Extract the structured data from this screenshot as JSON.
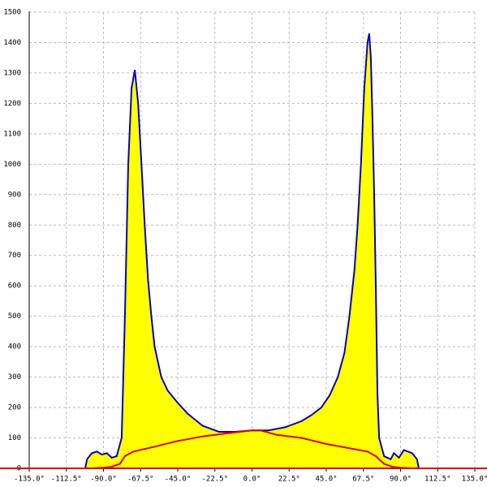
{
  "chart_data": {
    "type": "line",
    "xlim": [
      -135,
      135
    ],
    "ylim": [
      0,
      1500
    ],
    "xticks": [
      {
        "value": -135,
        "label": "-135.0°"
      },
      {
        "value": -112.5,
        "label": "-112.5°"
      },
      {
        "value": -90,
        "label": "-90.0°"
      },
      {
        "value": -67.5,
        "label": "-67.5°"
      },
      {
        "value": -45,
        "label": "-45.0°"
      },
      {
        "value": -22.5,
        "label": "-22.5°"
      },
      {
        "value": 0,
        "label": "0.0°"
      },
      {
        "value": 22.5,
        "label": "22.5°"
      },
      {
        "value": 45,
        "label": "45.0°"
      },
      {
        "value": 67.5,
        "label": "67.5°"
      },
      {
        "value": 90,
        "label": "90.0°"
      },
      {
        "value": 112.5,
        "label": "112.5°"
      },
      {
        "value": 135,
        "label": "135.0°"
      }
    ],
    "yticks": [
      0,
      100,
      200,
      300,
      400,
      500,
      600,
      700,
      800,
      900,
      1000,
      1100,
      1200,
      1300,
      1400,
      1500
    ],
    "grid": true,
    "series": [
      {
        "color": "#0000cc",
        "fill": "#ffff00",
        "x": [
          -101,
          -100,
          -97,
          -94,
          -91,
          -88,
          -85,
          -82,
          -79,
          -77,
          -75,
          -73,
          -71,
          -69,
          -67,
          -65,
          -63,
          -61,
          -59,
          -55,
          -51,
          -45,
          -39,
          -30,
          -20,
          -10,
          0,
          10,
          20,
          30,
          36,
          42,
          47,
          52,
          56,
          59,
          62,
          64,
          66,
          68,
          70,
          71,
          72,
          73,
          74,
          75,
          76,
          77,
          80,
          84,
          86,
          89,
          92,
          97,
          100,
          101
        ],
        "values": [
          0,
          30,
          50,
          55,
          45,
          50,
          35,
          40,
          100,
          500,
          1000,
          1250,
          1310,
          1200,
          1000,
          800,
          620,
          500,
          400,
          300,
          255,
          215,
          180,
          140,
          120,
          120,
          125,
          125,
          135,
          155,
          175,
          200,
          240,
          300,
          380,
          500,
          650,
          800,
          1000,
          1250,
          1400,
          1430,
          1350,
          1150,
          900,
          600,
          250,
          100,
          40,
          30,
          50,
          35,
          60,
          50,
          30,
          0
        ]
      },
      {
        "color": "#dd0000",
        "x": [
          -97,
          -90,
          -85,
          -80,
          -77,
          -72,
          -60,
          -45,
          -30,
          -15,
          0,
          5,
          15,
          30,
          45,
          60,
          70,
          75,
          80,
          85,
          90,
          97
        ],
        "values": [
          0,
          2,
          5,
          15,
          40,
          55,
          70,
          90,
          105,
          115,
          125,
          125,
          110,
          100,
          80,
          65,
          55,
          40,
          15,
          5,
          2,
          0
        ]
      }
    ]
  }
}
